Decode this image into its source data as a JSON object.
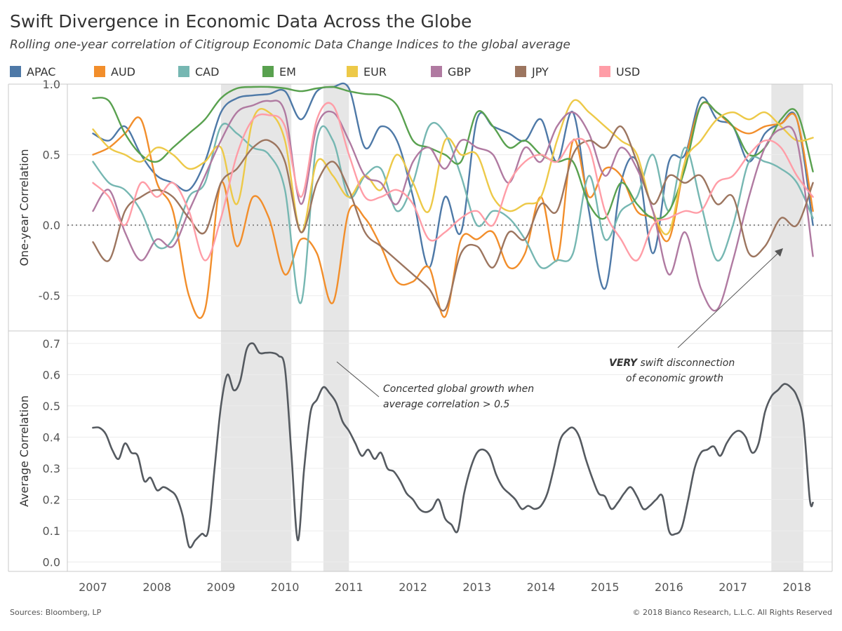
{
  "title": "Swift Divergence in Economic Data Across the Globe",
  "subtitle": "Rolling one-year correlation of Citigroup Economic Data Change Indices to the global average",
  "footer": {
    "source": "Sources: Bloomberg, LP",
    "copyright": "© 2018 Bianco Research, L.L.C. All Rights Reserved"
  },
  "annotations": {
    "concerted_line1": "Concerted global growth when",
    "concerted_line2": "average correlation > 0.5",
    "swift_bold": "VERY",
    "swift_rest": " swift disconnection",
    "swift_line2": "of economic growth"
  },
  "colors": {
    "APAC": "#4e79a7",
    "AUD": "#f28e2b",
    "CAD": "#76b7b2",
    "EM": "#59a14f",
    "EUR": "#edc948",
    "GBP": "#b07aa1",
    "JPY": "#9c755f",
    "USD": "#ff9da7",
    "average": "#555a60",
    "shade": "#e6e6e6"
  },
  "chart_data": [
    {
      "type": "line",
      "title": "Swift Divergence in Economic Data Across the Globe",
      "subtitle": "Rolling one-year correlation of Citigroup Economic Data Change Indices to the global average",
      "ylabel": "One-year Correlation",
      "ylim": [
        -0.75,
        1.0
      ],
      "yticks": [
        1.0,
        0.5,
        0.0,
        -0.5
      ],
      "ytick_labels": [
        "1.0",
        "0.5",
        "0.0",
        "-0.5"
      ],
      "reference_line": 0.0,
      "legend_position": "top",
      "shaded_periods": [
        [
          2009.0,
          2010.1
        ],
        [
          2010.6,
          2011.0
        ],
        [
          2017.6,
          2018.1
        ]
      ],
      "x": [
        2007.0,
        2007.25,
        2007.5,
        2007.75,
        2008.0,
        2008.25,
        2008.5,
        2008.75,
        2009.0,
        2009.25,
        2009.5,
        2009.75,
        2010.0,
        2010.25,
        2010.5,
        2010.75,
        2011.0,
        2011.25,
        2011.5,
        2011.75,
        2012.0,
        2012.25,
        2012.5,
        2012.75,
        2013.0,
        2013.25,
        2013.5,
        2013.75,
        2014.0,
        2014.25,
        2014.5,
        2014.75,
        2015.0,
        2015.25,
        2015.5,
        2015.75,
        2016.0,
        2016.25,
        2016.5,
        2016.75,
        2017.0,
        2017.25,
        2017.5,
        2017.75,
        2018.0,
        2018.25
      ],
      "series": [
        {
          "name": "APAC",
          "values": [
            0.65,
            0.6,
            0.7,
            0.5,
            0.35,
            0.3,
            0.25,
            0.45,
            0.8,
            0.9,
            0.92,
            0.93,
            0.95,
            0.75,
            0.95,
            0.98,
            0.97,
            0.55,
            0.7,
            0.6,
            0.2,
            -0.3,
            0.2,
            -0.05,
            0.75,
            0.7,
            0.65,
            0.6,
            0.75,
            0.45,
            0.8,
            0.1,
            -0.45,
            0.3,
            0.45,
            -0.2,
            0.45,
            0.5,
            0.9,
            0.75,
            0.7,
            0.45,
            0.65,
            0.72,
            0.75,
            0.0
          ]
        },
        {
          "name": "AUD",
          "values": [
            0.5,
            0.55,
            0.65,
            0.75,
            0.3,
            0.1,
            -0.5,
            -0.6,
            0.3,
            -0.15,
            0.2,
            0.05,
            -0.35,
            -0.1,
            -0.2,
            -0.55,
            0.1,
            0.05,
            -0.15,
            -0.4,
            -0.4,
            -0.3,
            -0.65,
            -0.1,
            -0.1,
            -0.05,
            -0.3,
            -0.2,
            0.2,
            -0.25,
            0.6,
            0.2,
            0.4,
            0.35,
            0.1,
            0.05,
            -0.1,
            0.45,
            0.85,
            0.8,
            0.7,
            0.65,
            0.7,
            0.72,
            0.75,
            0.1
          ]
        },
        {
          "name": "CAD",
          "values": [
            0.45,
            0.3,
            0.25,
            0.1,
            -0.15,
            -0.1,
            0.2,
            0.3,
            0.7,
            0.65,
            0.55,
            0.5,
            0.25,
            -0.55,
            0.6,
            0.6,
            0.2,
            0.35,
            0.4,
            0.1,
            0.3,
            0.7,
            0.65,
            0.35,
            0.0,
            0.1,
            0.05,
            -0.1,
            -0.3,
            -0.25,
            -0.2,
            0.35,
            -0.1,
            0.1,
            0.2,
            0.5,
            0.1,
            0.55,
            0.15,
            -0.25,
            0.0,
            0.45,
            0.45,
            0.4,
            0.3,
            0.05
          ]
        },
        {
          "name": "EM",
          "values": [
            0.9,
            0.88,
            0.65,
            0.5,
            0.45,
            0.55,
            0.65,
            0.75,
            0.9,
            0.97,
            0.98,
            0.98,
            0.97,
            0.95,
            0.97,
            0.98,
            0.95,
            0.93,
            0.92,
            0.85,
            0.6,
            0.55,
            0.5,
            0.45,
            0.8,
            0.7,
            0.55,
            0.6,
            0.5,
            0.45,
            0.45,
            0.15,
            0.05,
            0.3,
            0.15,
            0.05,
            0.1,
            0.4,
            0.85,
            0.8,
            0.7,
            0.5,
            0.55,
            0.75,
            0.8,
            0.38
          ]
        },
        {
          "name": "EUR",
          "values": [
            0.68,
            0.55,
            0.5,
            0.45,
            0.55,
            0.5,
            0.4,
            0.45,
            0.55,
            0.15,
            0.75,
            0.8,
            0.6,
            -0.05,
            0.45,
            0.35,
            0.2,
            0.35,
            0.25,
            0.5,
            0.3,
            0.1,
            0.6,
            0.5,
            0.5,
            0.2,
            0.1,
            0.15,
            0.2,
            0.6,
            0.88,
            0.8,
            0.7,
            0.6,
            0.5,
            0.1,
            -0.05,
            0.45,
            0.6,
            0.75,
            0.8,
            0.75,
            0.8,
            0.7,
            0.6,
            0.62
          ]
        },
        {
          "name": "GBP",
          "values": [
            0.1,
            0.25,
            -0.05,
            -0.25,
            -0.1,
            -0.15,
            0.1,
            0.35,
            0.6,
            0.8,
            0.85,
            0.88,
            0.8,
            0.15,
            0.7,
            0.8,
            0.6,
            0.35,
            0.3,
            0.15,
            0.45,
            0.55,
            0.4,
            0.6,
            0.55,
            0.5,
            0.3,
            0.55,
            0.45,
            0.7,
            0.8,
            0.65,
            0.35,
            0.55,
            0.4,
            0.1,
            -0.35,
            -0.05,
            -0.45,
            -0.6,
            -0.25,
            0.2,
            0.55,
            0.68,
            0.6,
            -0.22
          ]
        },
        {
          "name": "JPY",
          "values": [
            -0.12,
            -0.25,
            0.1,
            0.2,
            0.25,
            0.2,
            0.05,
            -0.05,
            0.3,
            0.4,
            0.55,
            0.6,
            0.45,
            -0.05,
            0.3,
            0.45,
            0.25,
            -0.05,
            -0.15,
            -0.25,
            -0.35,
            -0.45,
            -0.6,
            -0.2,
            -0.15,
            -0.3,
            -0.05,
            -0.1,
            0.15,
            0.1,
            0.5,
            0.6,
            0.55,
            0.7,
            0.45,
            0.15,
            0.35,
            0.3,
            0.35,
            0.15,
            0.2,
            -0.2,
            -0.15,
            0.05,
            0.0,
            0.3
          ]
        },
        {
          "name": "USD",
          "values": [
            0.3,
            0.2,
            0.0,
            0.3,
            0.2,
            0.3,
            0.1,
            -0.25,
            0.05,
            0.5,
            0.75,
            0.78,
            0.7,
            0.2,
            0.75,
            0.85,
            0.5,
            0.2,
            0.2,
            0.25,
            0.15,
            -0.1,
            -0.05,
            0.05,
            0.1,
            0.0,
            0.3,
            0.45,
            0.5,
            0.45,
            0.6,
            0.55,
            0.1,
            -0.1,
            -0.25,
            0.0,
            0.05,
            0.1,
            0.1,
            0.3,
            0.35,
            0.5,
            0.6,
            0.55,
            0.35,
            0.2
          ]
        }
      ]
    },
    {
      "type": "line",
      "ylabel": "Average Correlation",
      "ylim": [
        -0.03,
        0.74
      ],
      "yticks": [
        0.7,
        0.6,
        0.5,
        0.4,
        0.3,
        0.2,
        0.1,
        0.0
      ],
      "ytick_labels": [
        "0.7",
        "0.6",
        "0.5",
        "0.4",
        "0.3",
        "0.2",
        "0.1",
        "0.0"
      ],
      "xticks": [
        2007,
        2008,
        2009,
        2010,
        2011,
        2012,
        2013,
        2014,
        2015,
        2016,
        2017,
        2018
      ],
      "xtick_labels": [
        "2007",
        "2008",
        "2009",
        "2010",
        "2011",
        "2012",
        "2013",
        "2014",
        "2015",
        "2016",
        "2017",
        "2018"
      ],
      "xlim": [
        2006.6,
        2018.55
      ],
      "shaded_periods": [
        [
          2009.0,
          2010.1
        ],
        [
          2010.6,
          2011.0
        ],
        [
          2017.6,
          2018.1
        ]
      ],
      "x": [
        2007.0,
        2007.1,
        2007.2,
        2007.3,
        2007.4,
        2007.5,
        2007.6,
        2007.7,
        2007.8,
        2007.9,
        2008.0,
        2008.1,
        2008.2,
        2008.3,
        2008.4,
        2008.5,
        2008.6,
        2008.7,
        2008.8,
        2008.9,
        2009.0,
        2009.1,
        2009.2,
        2009.3,
        2009.4,
        2009.5,
        2009.6,
        2009.7,
        2009.8,
        2009.9,
        2010.0,
        2010.1,
        2010.2,
        2010.3,
        2010.4,
        2010.5,
        2010.6,
        2010.7,
        2010.8,
        2010.9,
        2011.0,
        2011.1,
        2011.2,
        2011.3,
        2011.4,
        2011.5,
        2011.6,
        2011.7,
        2011.8,
        2011.9,
        2012.0,
        2012.1,
        2012.2,
        2012.3,
        2012.4,
        2012.5,
        2012.6,
        2012.7,
        2012.8,
        2012.9,
        2013.0,
        2013.1,
        2013.2,
        2013.3,
        2013.4,
        2013.5,
        2013.6,
        2013.7,
        2013.8,
        2013.9,
        2014.0,
        2014.1,
        2014.2,
        2014.3,
        2014.4,
        2014.5,
        2014.6,
        2014.7,
        2014.8,
        2014.9,
        2015.0,
        2015.1,
        2015.2,
        2015.3,
        2015.4,
        2015.5,
        2015.6,
        2015.7,
        2015.8,
        2015.9,
        2016.0,
        2016.1,
        2016.2,
        2016.3,
        2016.4,
        2016.5,
        2016.6,
        2016.7,
        2016.8,
        2016.9,
        2017.0,
        2017.1,
        2017.2,
        2017.3,
        2017.4,
        2017.5,
        2017.6,
        2017.7,
        2017.8,
        2017.9,
        2018.0,
        2018.1,
        2018.2,
        2018.25
      ],
      "series": [
        {
          "name": "",
          "values": [
            0.43,
            0.43,
            0.41,
            0.36,
            0.33,
            0.38,
            0.35,
            0.34,
            0.26,
            0.27,
            0.23,
            0.24,
            0.23,
            0.21,
            0.15,
            0.05,
            0.07,
            0.09,
            0.1,
            0.3,
            0.5,
            0.6,
            0.55,
            0.58,
            0.68,
            0.7,
            0.67,
            0.67,
            0.67,
            0.66,
            0.62,
            0.35,
            0.07,
            0.3,
            0.48,
            0.52,
            0.56,
            0.54,
            0.51,
            0.45,
            0.42,
            0.38,
            0.34,
            0.36,
            0.33,
            0.35,
            0.3,
            0.29,
            0.26,
            0.22,
            0.2,
            0.17,
            0.16,
            0.17,
            0.2,
            0.14,
            0.12,
            0.1,
            0.22,
            0.3,
            0.35,
            0.36,
            0.34,
            0.28,
            0.24,
            0.22,
            0.2,
            0.17,
            0.18,
            0.17,
            0.18,
            0.22,
            0.3,
            0.39,
            0.42,
            0.43,
            0.4,
            0.33,
            0.27,
            0.22,
            0.21,
            0.17,
            0.19,
            0.22,
            0.24,
            0.21,
            0.17,
            0.18,
            0.2,
            0.21,
            0.1,
            0.09,
            0.11,
            0.2,
            0.3,
            0.35,
            0.36,
            0.37,
            0.34,
            0.38,
            0.41,
            0.42,
            0.4,
            0.35,
            0.38,
            0.48,
            0.53,
            0.55,
            0.57,
            0.56,
            0.53,
            0.45,
            0.2,
            0.19
          ]
        }
      ]
    }
  ]
}
